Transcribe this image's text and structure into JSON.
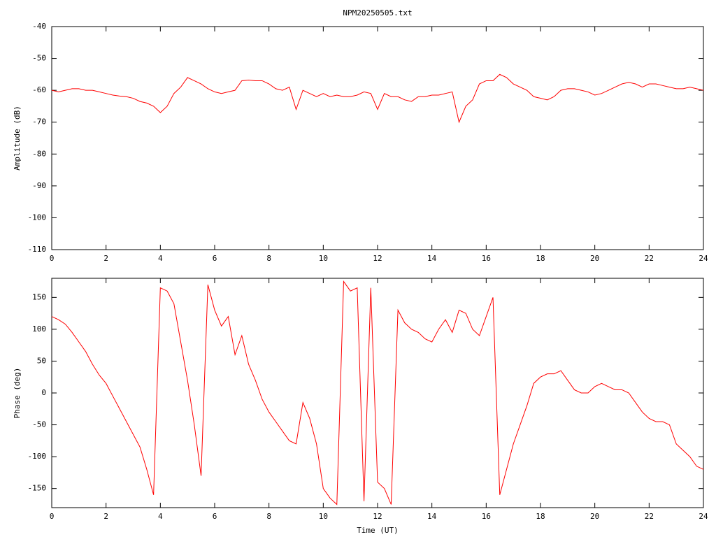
{
  "chart_data": [
    {
      "type": "line",
      "title": "NPM20250505.txt",
      "ylabel": "Amplitude (dB)",
      "color": "#ff0000",
      "x": [
        0,
        0.25,
        0.5,
        0.75,
        1,
        1.25,
        1.5,
        1.75,
        2,
        2.25,
        2.5,
        2.75,
        3,
        3.25,
        3.5,
        3.75,
        4,
        4.25,
        4.5,
        4.75,
        5,
        5.25,
        5.5,
        5.75,
        6,
        6.25,
        6.5,
        6.75,
        7,
        7.25,
        7.5,
        7.75,
        8,
        8.25,
        8.5,
        8.75,
        9,
        9.25,
        9.5,
        9.75,
        10,
        10.25,
        10.5,
        10.75,
        11,
        11.25,
        11.5,
        11.75,
        12,
        12.25,
        12.5,
        12.75,
        13,
        13.25,
        13.5,
        13.75,
        14,
        14.25,
        14.5,
        14.75,
        15,
        15.25,
        15.5,
        15.75,
        16,
        16.25,
        16.5,
        16.75,
        17,
        17.25,
        17.5,
        17.75,
        18,
        18.25,
        18.5,
        18.75,
        19,
        19.25,
        19.5,
        19.75,
        20,
        20.25,
        20.5,
        20.75,
        21,
        21.25,
        21.5,
        21.75,
        22,
        22.25,
        22.5,
        22.75,
        23,
        23.25,
        23.5,
        23.75,
        24
      ],
      "values": [
        -60,
        -60.5,
        -60,
        -59.5,
        -59.5,
        -60,
        -60,
        -60.5,
        -61,
        -61.5,
        -61.8,
        -62,
        -62.5,
        -63.5,
        -64,
        -65,
        -67,
        -65,
        -61,
        -59,
        -56,
        -57,
        -58,
        -59.5,
        -60.5,
        -61,
        -60.5,
        -60,
        -57,
        -56.8,
        -57,
        -57,
        -58,
        -59.5,
        -60,
        -59,
        -66,
        -60,
        -61,
        -62,
        -61,
        -62,
        -61.5,
        -62,
        -62,
        -61.5,
        -60.5,
        -61,
        -66,
        -61,
        -62,
        -62,
        -63,
        -63.5,
        -62,
        -62,
        -61.5,
        -61.5,
        -61,
        -60.5,
        -70,
        -65,
        -63,
        -58,
        -57,
        -57,
        -55,
        -56,
        -58,
        -59,
        -60,
        -62,
        -62.5,
        -63,
        -62,
        -60,
        -59.5,
        -59.5,
        -60,
        -60.5,
        -61.5,
        -61,
        -60,
        -59,
        -58,
        -57.5,
        -58,
        -59,
        -58,
        -58,
        -58.5,
        -59,
        -59.5,
        -59.5,
        -59,
        -59.5,
        -60
      ],
      "xlim": [
        0,
        24
      ],
      "xticks": [
        0,
        2,
        4,
        6,
        8,
        10,
        12,
        14,
        16,
        18,
        20,
        22,
        24
      ],
      "ylim": [
        -110,
        -40
      ],
      "yticks": [
        -40,
        -50,
        -60,
        -70,
        -80,
        -90,
        -100,
        -110
      ]
    },
    {
      "type": "line",
      "ylabel": "Phase (deg)",
      "xlabel": "Time (UT)",
      "color": "#ff0000",
      "x": [
        0,
        0.25,
        0.5,
        0.75,
        1,
        1.25,
        1.5,
        1.75,
        2,
        2.25,
        2.5,
        2.75,
        3,
        3.25,
        3.5,
        3.75,
        4,
        4.25,
        4.5,
        4.75,
        5,
        5.25,
        5.5,
        5.75,
        6,
        6.25,
        6.5,
        6.75,
        7,
        7.25,
        7.5,
        7.75,
        8,
        8.25,
        8.5,
        8.75,
        9,
        9.25,
        9.5,
        9.75,
        10,
        10.25,
        10.5,
        10.75,
        11,
        11.25,
        11.5,
        11.75,
        12,
        12.25,
        12.5,
        12.75,
        13,
        13.25,
        13.5,
        13.75,
        14,
        14.25,
        14.5,
        14.75,
        15,
        15.25,
        15.5,
        15.75,
        16,
        16.25,
        16.5,
        16.75,
        17,
        17.25,
        17.5,
        17.75,
        18,
        18.25,
        18.5,
        18.75,
        19,
        19.25,
        19.5,
        19.75,
        20,
        20.25,
        20.5,
        20.75,
        21,
        21.25,
        21.5,
        21.75,
        22,
        22.25,
        22.5,
        22.75,
        23,
        23.25,
        23.5,
        23.75,
        24
      ],
      "values": [
        120,
        115,
        108,
        95,
        80,
        65,
        45,
        28,
        15,
        -5,
        -25,
        -45,
        -65,
        -85,
        -120,
        -160,
        165,
        160,
        140,
        80,
        20,
        -50,
        -130,
        170,
        130,
        105,
        120,
        60,
        90,
        45,
        20,
        -10,
        -30,
        -45,
        -60,
        -75,
        -80,
        -15,
        -40,
        -80,
        -150,
        -165,
        -175,
        175,
        160,
        165,
        -170,
        165,
        -140,
        -150,
        -175,
        130,
        110,
        100,
        95,
        85,
        80,
        100,
        115,
        95,
        130,
        125,
        100,
        90,
        120,
        150,
        -160,
        -120,
        -80,
        -50,
        -20,
        15,
        25,
        30,
        30,
        35,
        20,
        5,
        0,
        0,
        10,
        15,
        10,
        5,
        5,
        0,
        -15,
        -30,
        -40,
        -45,
        -45,
        -50,
        -80,
        -90,
        -100,
        -115,
        -120
      ],
      "xlim": [
        0,
        24
      ],
      "xticks": [
        0,
        2,
        4,
        6,
        8,
        10,
        12,
        14,
        16,
        18,
        20,
        22,
        24
      ],
      "ylim": [
        -180,
        180
      ],
      "yticks": [
        150,
        100,
        50,
        0,
        -50,
        -100,
        -150
      ]
    }
  ]
}
